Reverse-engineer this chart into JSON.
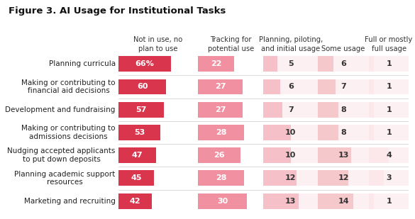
{
  "title": "Figure 3. AI Usage for Institutional Tasks",
  "categories": [
    "Planning curricula",
    "Making or contributing to\nfinancial aid decisions",
    "Development and fundraising",
    "Making or contributing to\nadmissions decisions",
    "Nudging accepted applicants\nto put down deposits",
    "Planning academic support\nresources",
    "Marketing and recruiting"
  ],
  "col_headers": [
    "Not in use, no\nplan to use",
    "Tracking for\npotential use",
    "Planning, piloting,\nand initial usage",
    "Some usage",
    "Full or mostly\nfull usage"
  ],
  "data": [
    [
      66,
      22,
      5,
      6,
      1
    ],
    [
      60,
      27,
      6,
      7,
      1
    ],
    [
      57,
      27,
      7,
      8,
      1
    ],
    [
      53,
      28,
      10,
      8,
      1
    ],
    [
      47,
      26,
      10,
      13,
      4
    ],
    [
      45,
      28,
      12,
      12,
      3
    ],
    [
      42,
      30,
      13,
      14,
      1
    ]
  ],
  "bar_colors": [
    "#d9364e",
    "#f090a0",
    "#f5c0c8",
    "#f5c8cc",
    "#fce8ea"
  ],
  "text_colors_on_bar": [
    "#ffffff",
    "#ffffff",
    "#333333",
    "#333333",
    "#333333"
  ],
  "background_color": "#ffffff",
  "title_fontsize": 9.5,
  "header_fontsize": 7.2,
  "row_label_fontsize": 7.5,
  "cell_fontsize": 8,
  "bar_height": 0.68,
  "col_max_vals": [
    100,
    40,
    20,
    20,
    8
  ],
  "col_widths_norm": [
    22,
    18,
    15,
    14,
    11
  ],
  "col_lefts_norm": [
    0,
    22,
    40,
    55,
    69
  ],
  "separator_color": "#cccccc",
  "header_color": "#333333",
  "row_label_color": "#222222"
}
